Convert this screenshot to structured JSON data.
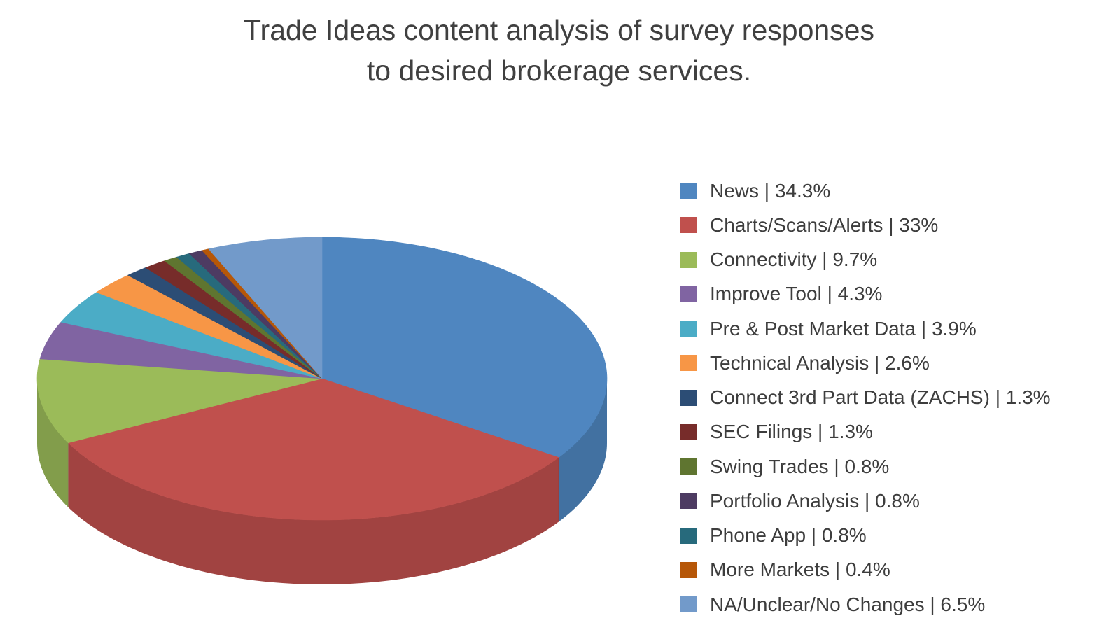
{
  "chart_data": {
    "type": "pie",
    "title": "Trade Ideas content analysis of survey responses to desired brokerage services.",
    "title_lines": [
      "Trade Ideas content analysis of survey responses",
      "to desired brokerage services."
    ],
    "style": "3d",
    "legend_position": "right",
    "unit": "%",
    "slices": [
      {
        "label": "News",
        "value": 34.3,
        "color": "#4f86c0",
        "legend_text": "News | 34.3%"
      },
      {
        "label": "Charts/Scans/Alerts",
        "value": 33,
        "color": "#c0504d",
        "legend_text": "Charts/Scans/Alerts | 33%"
      },
      {
        "label": "Connectivity",
        "value": 9.7,
        "color": "#9bbb59",
        "legend_text": "Connectivity | 9.7%"
      },
      {
        "label": "Improve Tool",
        "value": 4.3,
        "color": "#8064a2",
        "legend_text": "Improve Tool | 4.3%"
      },
      {
        "label": "Pre & Post Market Data",
        "value": 3.9,
        "color": "#4bacc6",
        "legend_text": "Pre & Post Market Data | 3.9%"
      },
      {
        "label": "Technical Analysis",
        "value": 2.6,
        "color": "#f79646",
        "legend_text": "Technical Analysis | 2.6%"
      },
      {
        "label": "Connect 3rd Part Data (ZACHS)",
        "value": 1.3,
        "color": "#2c4d75",
        "legend_text": "Connect 3rd Part Data (ZACHS) | 1.3%"
      },
      {
        "label": "SEC Filings",
        "value": 1.3,
        "color": "#772c2a",
        "legend_text": "SEC Filings | 1.3%"
      },
      {
        "label": "Swing Trades",
        "value": 0.8,
        "color": "#5f7530",
        "legend_text": "Swing Trades | 0.8%"
      },
      {
        "label": "Portfolio Analysis",
        "value": 0.8,
        "color": "#4d3b62",
        "legend_text": "Portfolio Analysis | 0.8%"
      },
      {
        "label": "Phone App",
        "value": 0.8,
        "color": "#276a7c",
        "legend_text": "Phone App | 0.8%"
      },
      {
        "label": "More Markets",
        "value": 0.4,
        "color": "#b65708",
        "legend_text": "More Markets | 0.4%"
      },
      {
        "label": "NA/Unclear/No Changes",
        "value": 6.5,
        "color": "#729aca",
        "legend_text": "NA/Unclear/No Changes | 6.5%"
      }
    ],
    "drawing_order": [
      "News",
      "Charts/Scans/Alerts",
      "Connectivity",
      "Improve Tool",
      "Pre & Post Market Data",
      "Technical Analysis",
      "Connect 3rd Part Data (ZACHS)",
      "SEC Filings",
      "Swing Trades",
      "Phone App",
      "Portfolio Analysis",
      "More Markets",
      "NA/Unclear/No Changes"
    ]
  }
}
